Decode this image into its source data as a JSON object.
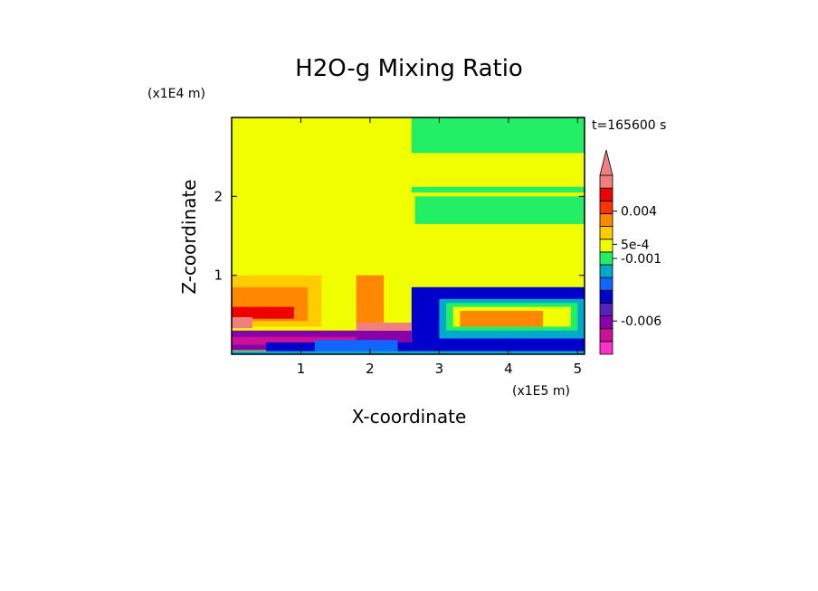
{
  "chart_data": {
    "type": "heatmap",
    "title": "H2O-g Mixing Ratio",
    "xlabel": "X-coordinate",
    "ylabel": "Z-coordinate",
    "x_multiplier": "(x1E5 m)",
    "y_multiplier": "(x1E4 m)",
    "time_label": "t=165600 s",
    "xlim": [
      0.0,
      5.1
    ],
    "ylim": [
      0.0,
      3.0
    ],
    "xticks": [
      1,
      2,
      3,
      4,
      5
    ],
    "yticks": [
      1,
      2
    ],
    "colorbar": {
      "extend": "max",
      "levels": [
        {
          "color": "#ff33cc"
        },
        {
          "color": "#cc1199"
        },
        {
          "color": "#8800aa"
        },
        {
          "color": "#5522bb"
        },
        {
          "color": "#0000cc"
        },
        {
          "color": "#1166ff"
        },
        {
          "color": "#00aacc"
        },
        {
          "color": "#22ee66"
        },
        {
          "color": "#f0ff00"
        },
        {
          "color": "#ffcc00"
        },
        {
          "color": "#ff8800"
        },
        {
          "color": "#ff3300"
        },
        {
          "color": "#ee0000"
        },
        {
          "color": "#f08080"
        }
      ],
      "tick_labels": [
        {
          "text": "-0.006",
          "level_boundary": 2.6
        },
        {
          "text": "-0.001",
          "level_boundary": 7.5
        },
        {
          "text": "5e-4",
          "level_boundary": 8.6
        },
        {
          "text": "0.004",
          "level_boundary": 11.2
        }
      ]
    },
    "regions": [
      {
        "color": "#f0ff00",
        "x": [
          0.0,
          5.1
        ],
        "z": [
          0.0,
          3.0
        ]
      },
      {
        "color": "#22ee66",
        "x": [
          2.6,
          5.1
        ],
        "z": [
          2.55,
          3.0
        ]
      },
      {
        "color": "#22ee66",
        "x": [
          2.65,
          5.1
        ],
        "z": [
          1.65,
          2.0
        ]
      },
      {
        "color": "#22ee66",
        "x": [
          2.6,
          5.1
        ],
        "z": [
          2.05,
          2.12
        ]
      },
      {
        "color": "#f0ff00",
        "x": [
          2.75,
          4.8
        ],
        "z": [
          2.2,
          2.45
        ]
      },
      {
        "color": "#ffcc00",
        "x": [
          0.0,
          1.3
        ],
        "z": [
          0.35,
          1.0
        ]
      },
      {
        "color": "#ff8800",
        "x": [
          0.0,
          1.1
        ],
        "z": [
          0.42,
          0.85
        ]
      },
      {
        "color": "#ee0000",
        "x": [
          0.0,
          0.9
        ],
        "z": [
          0.45,
          0.6
        ]
      },
      {
        "color": "#f08080",
        "x": [
          0.0,
          0.3
        ],
        "z": [
          0.33,
          0.47
        ]
      },
      {
        "color": "#0000cc",
        "x": [
          2.6,
          5.1
        ],
        "z": [
          0.0,
          0.85
        ]
      },
      {
        "color": "#00aacc",
        "x": [
          3.0,
          5.1
        ],
        "z": [
          0.2,
          0.7
        ]
      },
      {
        "color": "#22ee66",
        "x": [
          3.1,
          5.0
        ],
        "z": [
          0.3,
          0.65
        ]
      },
      {
        "color": "#f0ff00",
        "x": [
          3.2,
          4.9
        ],
        "z": [
          0.35,
          0.6
        ]
      },
      {
        "color": "#ff8800",
        "x": [
          3.3,
          4.5
        ],
        "z": [
          0.35,
          0.55
        ]
      },
      {
        "color": "#8800aa",
        "x": [
          0.0,
          2.6
        ],
        "z": [
          0.05,
          0.3
        ]
      },
      {
        "color": "#cc1199",
        "x": [
          0.0,
          1.8
        ],
        "z": [
          0.12,
          0.22
        ]
      },
      {
        "color": "#0000cc",
        "x": [
          0.5,
          2.6
        ],
        "z": [
          0.0,
          0.15
        ]
      },
      {
        "color": "#1166ff",
        "x": [
          1.2,
          2.4
        ],
        "z": [
          0.03,
          0.18
        ]
      },
      {
        "color": "#00aacc",
        "x": [
          0.0,
          5.1
        ],
        "z": [
          0.0,
          0.04
        ]
      },
      {
        "color": "#ff8800",
        "x": [
          1.8,
          2.2
        ],
        "z": [
          0.35,
          1.0
        ]
      },
      {
        "color": "#f08080",
        "x": [
          1.8,
          2.6
        ],
        "z": [
          0.3,
          0.4
        ]
      }
    ]
  }
}
